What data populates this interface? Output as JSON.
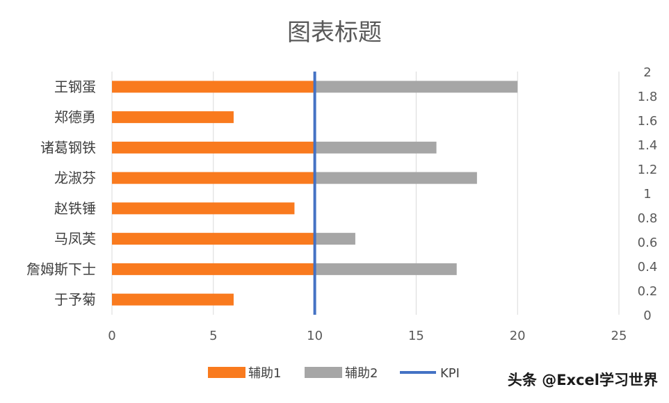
{
  "chart_data": {
    "type": "bar",
    "title": "图表标题",
    "categories": [
      "王钢蛋",
      "郑德勇",
      "诸葛钢铁",
      "龙淑芬",
      "赵铁锤",
      "马凤芙",
      "詹姆斯下士",
      "于予菊"
    ],
    "series": [
      {
        "name": "辅助1",
        "values": [
          10,
          6,
          10,
          10,
          9,
          10,
          10,
          6
        ],
        "color": "#f97a1e"
      },
      {
        "name": "辅助2",
        "values": [
          10,
          0,
          6,
          8,
          0,
          2,
          7,
          0
        ],
        "color": "#a6a6a6"
      }
    ],
    "kpi": {
      "name": "KPI",
      "value": 10,
      "color": "#4472c4"
    },
    "x_ticks": [
      "0",
      "5",
      "10",
      "15",
      "20",
      "25"
    ],
    "xlim": [
      0,
      25
    ],
    "y2_ticks": [
      "0",
      "0.2",
      "0.4",
      "0.6",
      "0.8",
      "1",
      "1.2",
      "1.4",
      "1.6",
      "1.8",
      "2"
    ],
    "y2lim": [
      0,
      2
    ],
    "stacked": true,
    "orientation": "horizontal",
    "grid": "vertical",
    "legend_position": "bottom",
    "legend": [
      "辅助1",
      "辅助2",
      "KPI"
    ]
  },
  "watermark": "头条 @Excel学习世界"
}
